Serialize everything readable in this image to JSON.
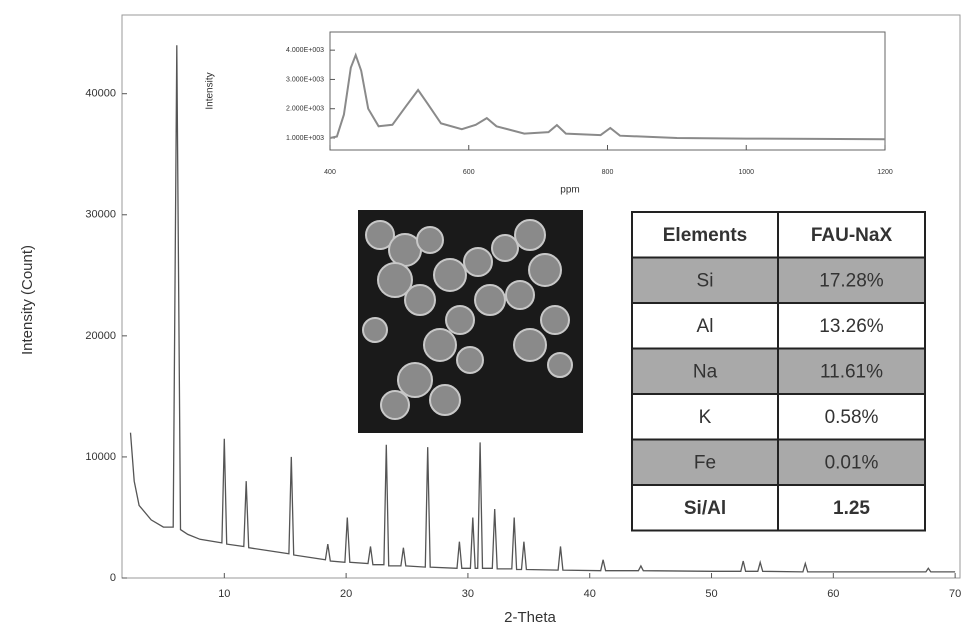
{
  "chart_data": [
    {
      "type": "line",
      "xlabel": "2-Theta",
      "ylabel": "Intensity (Count)",
      "color": "#555555",
      "xlim": [
        1.6,
        70.4
      ],
      "ylim": [
        0,
        46500
      ],
      "xticks": [
        10,
        20,
        30,
        40,
        50,
        60,
        70
      ],
      "yticks": [
        0,
        10000,
        20000,
        30000,
        40000
      ],
      "x": [
        2.3,
        2.6,
        3.0,
        4.0,
        5.0,
        5.8,
        6.1,
        6.4,
        7,
        8,
        9.8,
        10.0,
        10.2,
        11.6,
        11.8,
        12.0,
        15.3,
        15.5,
        15.7,
        18.3,
        18.5,
        18.7,
        19.9,
        20.1,
        20.3,
        21.8,
        22.0,
        22.2,
        23.1,
        23.3,
        23.5,
        24.5,
        24.7,
        24.9,
        26.5,
        26.7,
        26.9,
        29.1,
        29.3,
        29.5,
        30.2,
        30.4,
        30.6,
        30.8,
        31.0,
        31.2,
        32.0,
        32.2,
        32.4,
        33.6,
        33.8,
        34.0,
        34.4,
        34.6,
        34.8,
        37.4,
        37.6,
        37.8,
        40.9,
        41.1,
        41.3,
        44.0,
        44.2,
        44.4,
        50,
        52.4,
        52.6,
        52.8,
        53.8,
        54.0,
        54.2,
        57.5,
        57.7,
        57.9,
        65,
        67.6,
        67.8,
        68.0,
        70
      ],
      "values": [
        12000,
        8000,
        6000,
        4800,
        4200,
        4200,
        44000,
        4000,
        3600,
        3200,
        2900,
        11500,
        2800,
        2600,
        8000,
        2500,
        2000,
        10000,
        1900,
        1500,
        2800,
        1400,
        1300,
        5000,
        1300,
        1200,
        2600,
        1100,
        1100,
        11000,
        1000,
        1000,
        2500,
        1000,
        900,
        10800,
        900,
        800,
        3000,
        800,
        800,
        5000,
        800,
        800,
        11200,
        800,
        800,
        5700,
        750,
        750,
        5000,
        700,
        700,
        3000,
        700,
        650,
        2600,
        650,
        600,
        1500,
        600,
        600,
        1000,
        600,
        550,
        550,
        1400,
        550,
        550,
        1300,
        550,
        500,
        1200,
        500,
        500,
        500,
        800,
        500,
        500
      ]
    },
    {
      "type": "line",
      "xlabel": "ppm",
      "ylabel": "Intensity",
      "color": "#8a8a8a",
      "xlim": [
        400,
        1200
      ],
      "ylim": [
        590,
        4620
      ],
      "xticks": [
        400,
        600,
        800,
        1000,
        1200
      ],
      "yticks": [
        {
          "value": 1000,
          "label": "1.000E+003"
        },
        {
          "value": 2000,
          "label": "2.000E+003"
        },
        {
          "value": 3000,
          "label": "3.000E+003"
        },
        {
          "value": 4000,
          "label": "4.000E+003"
        }
      ],
      "x": [
        400,
        410,
        420,
        430,
        437,
        445,
        455,
        470,
        490,
        510,
        527,
        540,
        560,
        590,
        610,
        626,
        640,
        680,
        715,
        727,
        740,
        790,
        804,
        818,
        900,
        1000,
        1100,
        1200
      ],
      "values": [
        1000,
        1050,
        1800,
        3400,
        3830,
        3300,
        2000,
        1400,
        1450,
        2100,
        2640,
        2200,
        1500,
        1300,
        1450,
        1680,
        1400,
        1150,
        1200,
        1440,
        1150,
        1100,
        1340,
        1080,
        1000,
        980,
        970,
        960
      ]
    }
  ],
  "table": {
    "header": [
      "Elements",
      "FAU-NaX"
    ],
    "rows": [
      [
        "Si",
        "17.28%"
      ],
      [
        "Al",
        "13.26%"
      ],
      [
        "Na",
        "11.61%"
      ],
      [
        "K",
        "0.58%"
      ],
      [
        "Fe",
        "0.01%"
      ],
      [
        "Si/Al",
        "1.25"
      ]
    ]
  }
}
